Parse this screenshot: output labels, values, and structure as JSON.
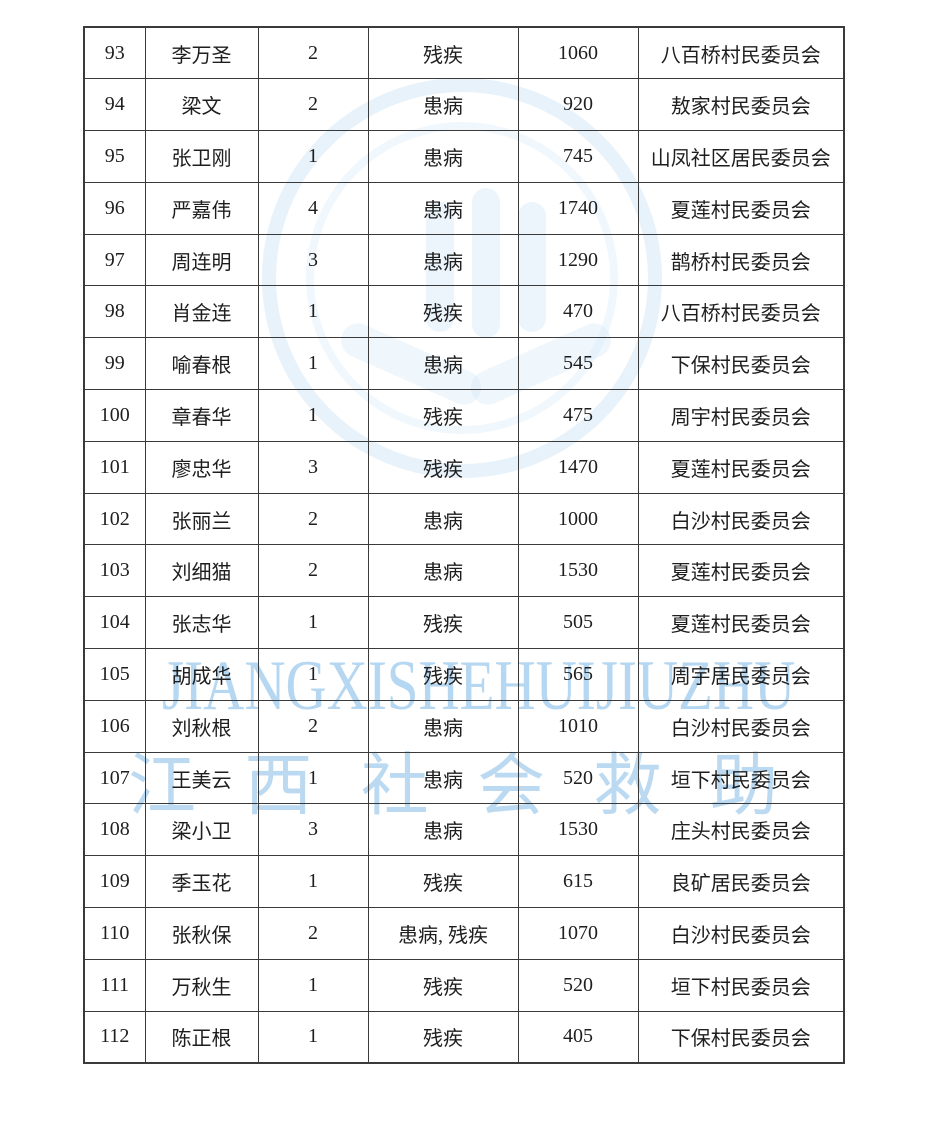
{
  "watermark": {
    "latin": "JIANGXISHEHUIJIUZHU",
    "cjk_chars": [
      "江",
      "西",
      "社",
      "会",
      "救",
      "助"
    ],
    "text_color": "#a4cdee",
    "seal_color": "#c5dff4"
  },
  "table": {
    "rows": [
      [
        "93",
        "李万圣",
        "2",
        "残疾",
        "1060",
        "八百桥村民委员会"
      ],
      [
        "94",
        "梁文",
        "2",
        "患病",
        "920",
        "敖家村民委员会"
      ],
      [
        "95",
        "张卫刚",
        "1",
        "患病",
        "745",
        "山凤社区居民委员会"
      ],
      [
        "96",
        "严嘉伟",
        "4",
        "患病",
        "1740",
        "夏莲村民委员会"
      ],
      [
        "97",
        "周连明",
        "3",
        "患病",
        "1290",
        "鹊桥村民委员会"
      ],
      [
        "98",
        "肖金连",
        "1",
        "残疾",
        "470",
        "八百桥村民委员会"
      ],
      [
        "99",
        "喻春根",
        "1",
        "患病",
        "545",
        "下保村民委员会"
      ],
      [
        "100",
        "章春华",
        "1",
        "残疾",
        "475",
        "周宇村民委员会"
      ],
      [
        "101",
        "廖忠华",
        "3",
        "残疾",
        "1470",
        "夏莲村民委员会"
      ],
      [
        "102",
        "张丽兰",
        "2",
        "患病",
        "1000",
        "白沙村民委员会"
      ],
      [
        "103",
        "刘细猫",
        "2",
        "患病",
        "1530",
        "夏莲村民委员会"
      ],
      [
        "104",
        "张志华",
        "1",
        "残疾",
        "505",
        "夏莲村民委员会"
      ],
      [
        "105",
        "胡成华",
        "1",
        "残疾",
        "565",
        "周宇居民委员会"
      ],
      [
        "106",
        "刘秋根",
        "2",
        "患病",
        "1010",
        "白沙村民委员会"
      ],
      [
        "107",
        "王美云",
        "1",
        "患病",
        "520",
        "垣下村民委员会"
      ],
      [
        "108",
        "梁小卫",
        "3",
        "患病",
        "1530",
        "庄头村民委员会"
      ],
      [
        "109",
        "季玉花",
        "1",
        "残疾",
        "615",
        "良矿居民委员会"
      ],
      [
        "110",
        "张秋保",
        "2",
        "患病, 残疾",
        "1070",
        "白沙村民委员会"
      ],
      [
        "111",
        "万秋生",
        "1",
        "残疾",
        "520",
        "垣下村民委员会"
      ],
      [
        "112",
        "陈正根",
        "1",
        "残疾",
        "405",
        "下保村民委员会"
      ]
    ]
  }
}
